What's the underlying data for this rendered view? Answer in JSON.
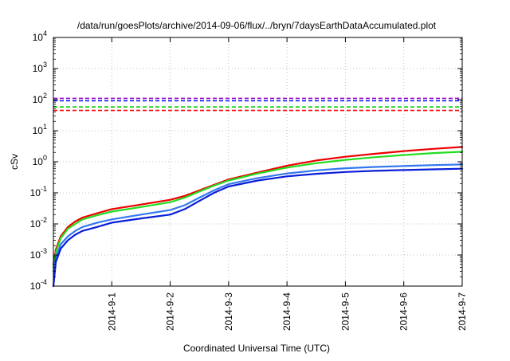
{
  "chart_data": {
    "type": "line",
    "title": "/data/run/goesPlots/archive/2014-09-06/flux/../bryn/7daysEarthDataAccumulated.plot",
    "xlabel": "Coordinated Universal Time (UTC)",
    "ylabel": "cSv",
    "y_scale": "log",
    "ylim": [
      0.0001,
      10000
    ],
    "xlim": [
      "2014-08-31",
      "2014-09-07"
    ],
    "x_tick_labels": [
      "2014-9-1",
      "2014-9-2",
      "2014-9-3",
      "2014-9-4",
      "2014-9-5",
      "2014-9-6",
      "2014-9-7"
    ],
    "y_tick_labels": [
      {
        "base": "10",
        "exp": "-4"
      },
      {
        "base": "10",
        "exp": "-3"
      },
      {
        "base": "10",
        "exp": "-2"
      },
      {
        "base": "10",
        "exp": "-1"
      },
      {
        "base": "10",
        "exp": "0"
      },
      {
        "base": "10",
        "exp": "1"
      },
      {
        "base": "10",
        "exp": "2"
      },
      {
        "base": "10",
        "exp": "3"
      },
      {
        "base": "10",
        "exp": "4"
      }
    ],
    "grid": true,
    "legend": "none",
    "threshold_lines": [
      {
        "value": 110,
        "color": "#9900cc",
        "style": "dashed"
      },
      {
        "value": 92,
        "color": "#1a1aff",
        "style": "dashed"
      },
      {
        "value": 58,
        "color": "#00cc00",
        "style": "dashed"
      },
      {
        "value": 45,
        "color": "#ff0000",
        "style": "dashed"
      }
    ],
    "series": [
      {
        "color": "#ee0000",
        "x": [
          "2014-08-31 00:00",
          "2014-08-31 01:00",
          "2014-08-31 03:00",
          "2014-08-31 06:00",
          "2014-08-31 09:00",
          "2014-08-31 12:00",
          "2014-08-31 18:00",
          "2014-09-01 00:00",
          "2014-09-01 12:00",
          "2014-09-02 00:00",
          "2014-09-02 06:00",
          "2014-09-02 12:00",
          "2014-09-02 18:00",
          "2014-09-03 00:00",
          "2014-09-03 12:00",
          "2014-09-04 00:00",
          "2014-09-04 12:00",
          "2014-09-05 00:00",
          "2014-09-05 12:00",
          "2014-09-06 00:00",
          "2014-09-06 12:00",
          "2014-09-07 00:00"
        ],
        "y": [
          0.0005,
          0.0015,
          0.004,
          0.008,
          0.012,
          0.016,
          0.022,
          0.03,
          0.042,
          0.06,
          0.08,
          0.12,
          0.18,
          0.27,
          0.45,
          0.75,
          1.1,
          1.45,
          1.8,
          2.2,
          2.6,
          3.0
        ]
      },
      {
        "color": "#22dd22",
        "x": [
          "2014-08-31 00:00",
          "2014-08-31 01:00",
          "2014-08-31 03:00",
          "2014-08-31 06:00",
          "2014-08-31 09:00",
          "2014-08-31 12:00",
          "2014-08-31 18:00",
          "2014-09-01 00:00",
          "2014-09-01 12:00",
          "2014-09-02 00:00",
          "2014-09-02 06:00",
          "2014-09-02 12:00",
          "2014-09-02 18:00",
          "2014-09-03 00:00",
          "2014-09-03 12:00",
          "2014-09-04 00:00",
          "2014-09-04 12:00",
          "2014-09-05 00:00",
          "2014-09-05 12:00",
          "2014-09-06 00:00",
          "2014-09-06 12:00",
          "2014-09-07 00:00"
        ],
        "y": [
          0.0004,
          0.0012,
          0.0035,
          0.007,
          0.01,
          0.014,
          0.019,
          0.025,
          0.035,
          0.05,
          0.07,
          0.11,
          0.17,
          0.25,
          0.42,
          0.65,
          0.9,
          1.15,
          1.4,
          1.65,
          1.9,
          2.1
        ]
      },
      {
        "color": "#3377ee",
        "x": [
          "2014-08-31 00:00",
          "2014-08-31 01:00",
          "2014-08-31 03:00",
          "2014-08-31 06:00",
          "2014-08-31 09:00",
          "2014-08-31 12:00",
          "2014-08-31 18:00",
          "2014-09-01 00:00",
          "2014-09-01 12:00",
          "2014-09-02 00:00",
          "2014-09-02 06:00",
          "2014-09-02 12:00",
          "2014-09-02 18:00",
          "2014-09-03 00:00",
          "2014-09-03 12:00",
          "2014-09-04 00:00",
          "2014-09-04 12:00",
          "2014-09-05 00:00",
          "2014-09-05 12:00",
          "2014-09-06 00:00",
          "2014-09-06 12:00",
          "2014-09-07 00:00"
        ],
        "y": [
          0.0003,
          0.0008,
          0.0022,
          0.004,
          0.006,
          0.008,
          0.011,
          0.014,
          0.02,
          0.028,
          0.04,
          0.07,
          0.12,
          0.19,
          0.3,
          0.42,
          0.53,
          0.62,
          0.68,
          0.73,
          0.78,
          0.82
        ]
      },
      {
        "color": "#0a1ed8",
        "x": [
          "2014-08-31 00:00",
          "2014-08-31 01:00",
          "2014-08-31 03:00",
          "2014-08-31 06:00",
          "2014-08-31 09:00",
          "2014-08-31 12:00",
          "2014-08-31 18:00",
          "2014-09-01 00:00",
          "2014-09-01 12:00",
          "2014-09-02 00:00",
          "2014-09-02 06:00",
          "2014-09-02 12:00",
          "2014-09-02 18:00",
          "2014-09-03 00:00",
          "2014-09-03 12:00",
          "2014-09-04 00:00",
          "2014-09-04 12:00",
          "2014-09-05 00:00",
          "2014-09-05 12:00",
          "2014-09-06 00:00",
          "2014-09-06 12:00",
          "2014-09-07 00:00"
        ],
        "y": [
          0.0001,
          0.0006,
          0.0016,
          0.003,
          0.0045,
          0.006,
          0.008,
          0.011,
          0.015,
          0.02,
          0.03,
          0.055,
          0.1,
          0.16,
          0.25,
          0.34,
          0.41,
          0.47,
          0.51,
          0.54,
          0.57,
          0.6
        ]
      }
    ]
  }
}
